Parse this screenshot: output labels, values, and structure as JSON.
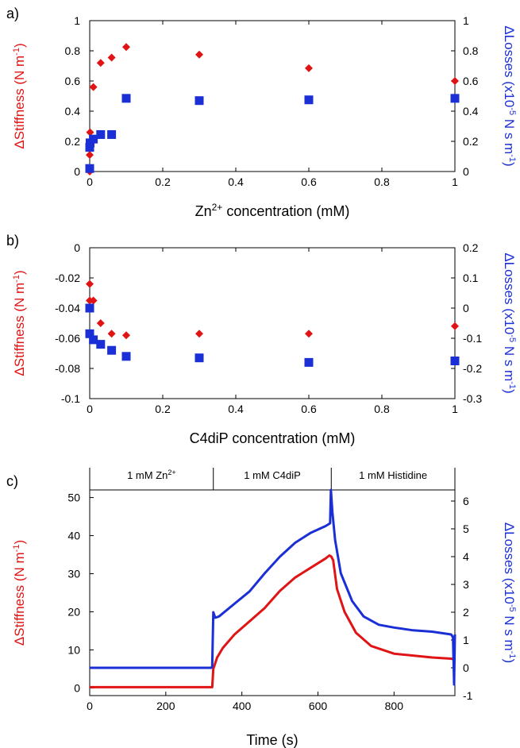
{
  "colors": {
    "red": "#e01414",
    "blue": "#1a2fd6",
    "axis": "#000000"
  },
  "chart_data": [
    {
      "panel_label": "a)",
      "type": "scatter",
      "xlabel_main": "Zn",
      "xlabel_sup": "2+",
      "xlabel_rest": " concentration (mM)",
      "ylabel_left_main": "ΔStiffness (N m",
      "ylabel_left_sup": "-1",
      "ylabel_left_end": ")",
      "ylabel_right_main": "ΔLosses (x10",
      "ylabel_right_sup": "-5",
      "ylabel_right_mid": " N s m",
      "ylabel_right_sup2": "-1",
      "ylabel_right_end": ")",
      "xlim": [
        0,
        1
      ],
      "ylim_left": [
        0,
        1
      ],
      "ylim_right": [
        0,
        1
      ],
      "x_ticks": [
        "0",
        "0.2",
        "0.4",
        "0.6",
        "0.8",
        "1"
      ],
      "y_left_ticks": [
        "0",
        "0.2",
        "0.4",
        "0.6",
        "0.8",
        "1"
      ],
      "y_right_ticks": [
        "0",
        "0.2",
        "0.4",
        "0.6",
        "0.8",
        "1"
      ],
      "series": [
        {
          "axis": "left",
          "marker": "diamond",
          "color": "red",
          "points": [
            [
              0,
              0.0
            ],
            [
              0.0,
              0.11
            ],
            [
              0.001,
              0.26
            ],
            [
              0.01,
              0.56
            ],
            [
              0.03,
              0.72
            ],
            [
              0.06,
              0.755
            ],
            [
              0.1,
              0.825
            ],
            [
              0.3,
              0.775
            ],
            [
              0.6,
              0.685
            ],
            [
              1.0,
              0.6
            ]
          ]
        },
        {
          "axis": "right",
          "marker": "square",
          "color": "blue",
          "points": [
            [
              0,
              0.02
            ],
            [
              0.0,
              0.16
            ],
            [
              0.001,
              0.19
            ],
            [
              0.01,
              0.215
            ],
            [
              0.03,
              0.245
            ],
            [
              0.06,
              0.245
            ],
            [
              0.1,
              0.485
            ],
            [
              0.3,
              0.47
            ],
            [
              0.6,
              0.475
            ],
            [
              1.0,
              0.485
            ]
          ]
        }
      ]
    },
    {
      "panel_label": "b)",
      "type": "scatter",
      "xlabel_main": "C4diP concentration (mM)",
      "ylabel_left_main": "ΔStiffness (N m",
      "ylabel_left_sup": "-1",
      "ylabel_left_end": ")",
      "ylabel_right_main": "ΔLosses (x10",
      "ylabel_right_sup": "-5",
      "ylabel_right_mid": " N s m",
      "ylabel_right_sup2": "-1",
      "ylabel_right_end": ")",
      "xlim": [
        0,
        1
      ],
      "ylim_left": [
        -0.1,
        0
      ],
      "ylim_right": [
        -0.3,
        0.2
      ],
      "x_ticks": [
        "0",
        "0.2",
        "0.4",
        "0.6",
        "0.8",
        "1"
      ],
      "y_left_ticks": [
        "-0.1",
        "-0.08",
        "-0.06",
        "-0.04",
        "-0.02",
        "0"
      ],
      "y_right_ticks": [
        "-0.3",
        "-0.2",
        "-0.1",
        "0",
        "0.1",
        "0.2"
      ],
      "series": [
        {
          "axis": "left",
          "marker": "diamond",
          "color": "red",
          "points": [
            [
              0,
              -0.024
            ],
            [
              0.0,
              -0.035
            ],
            [
              0.01,
              -0.035
            ],
            [
              0.03,
              -0.05
            ],
            [
              0.06,
              -0.057
            ],
            [
              0.1,
              -0.058
            ],
            [
              0.3,
              -0.057
            ],
            [
              0.6,
              -0.057
            ],
            [
              1.0,
              -0.052
            ]
          ]
        },
        {
          "axis": "right",
          "marker": "square",
          "color": "blue",
          "points": [
            [
              0,
              0.0
            ],
            [
              0.0,
              -0.085
            ],
            [
              0.01,
              -0.105
            ],
            [
              0.03,
              -0.12
            ],
            [
              0.06,
              -0.14
            ],
            [
              0.1,
              -0.16
            ],
            [
              0.3,
              -0.165
            ],
            [
              0.6,
              -0.18
            ],
            [
              1.0,
              -0.175
            ]
          ]
        }
      ]
    },
    {
      "panel_label": "c)",
      "type": "line",
      "xlabel_main": "Time (s)",
      "ylabel_left_main": "ΔStiffness (N m",
      "ylabel_left_sup": "-1",
      "ylabel_left_end": ")",
      "ylabel_right_main": "ΔLosses (x10",
      "ylabel_right_sup": "-5",
      "ylabel_right_mid": " N s m",
      "ylabel_right_sup2": "-1",
      "ylabel_right_end": ")",
      "xlim": [
        0,
        960
      ],
      "ylim_left": [
        -2,
        52
      ],
      "ylim_right": [
        -1,
        6.4
      ],
      "x_ticks": [
        "0",
        "200",
        "400",
        "600",
        "800"
      ],
      "y_left_ticks": [
        "0",
        "10",
        "20",
        "30",
        "40",
        "50"
      ],
      "y_right_ticks": [
        "-1",
        "0",
        "1",
        "2",
        "3",
        "4",
        "5",
        "6"
      ],
      "segments": [
        {
          "label": "1 mM Zn",
          "sup": "2+",
          "start": 0,
          "end": 325
        },
        {
          "label": "1 mM C4diP",
          "sup": "",
          "start": 325,
          "end": 635
        },
        {
          "label": "1 mM Histidine",
          "sup": "",
          "start": 635,
          "end": 960
        }
      ],
      "series": [
        {
          "axis": "left",
          "color": "red",
          "points": [
            [
              0,
              0.2
            ],
            [
              320,
              0.2
            ],
            [
              322,
              0.2
            ],
            [
              325,
              5
            ],
            [
              335,
              8
            ],
            [
              350,
              10.5
            ],
            [
              380,
              14
            ],
            [
              420,
              17.5
            ],
            [
              460,
              21
            ],
            [
              500,
              25.5
            ],
            [
              540,
              29
            ],
            [
              580,
              31.5
            ],
            [
              620,
              34
            ],
            [
              630,
              34.8
            ],
            [
              635,
              34.5
            ],
            [
              640,
              33.5
            ],
            [
              650,
              26
            ],
            [
              670,
              20
            ],
            [
              700,
              14.5
            ],
            [
              740,
              11
            ],
            [
              800,
              9
            ],
            [
              900,
              8
            ],
            [
              950,
              7.7
            ],
            [
              955,
              7.6
            ]
          ]
        },
        {
          "axis": "right",
          "color": "blue",
          "points": [
            [
              0,
              0.0
            ],
            [
              320,
              0.0
            ],
            [
              322,
              0.05
            ],
            [
              325,
              2.0
            ],
            [
              330,
              1.8
            ],
            [
              340,
              1.85
            ],
            [
              380,
              2.3
            ],
            [
              420,
              2.75
            ],
            [
              460,
              3.4
            ],
            [
              500,
              4.0
            ],
            [
              540,
              4.5
            ],
            [
              580,
              4.85
            ],
            [
              620,
              5.1
            ],
            [
              632,
              5.2
            ],
            [
              634,
              6.4
            ],
            [
              638,
              5.6
            ],
            [
              645,
              4.6
            ],
            [
              660,
              3.4
            ],
            [
              690,
              2.4
            ],
            [
              720,
              1.85
            ],
            [
              760,
              1.55
            ],
            [
              800,
              1.45
            ],
            [
              850,
              1.35
            ],
            [
              900,
              1.3
            ],
            [
              950,
              1.2
            ],
            [
              955,
              1.1
            ],
            [
              958,
              -0.6
            ],
            [
              960,
              1.2
            ]
          ]
        }
      ]
    }
  ]
}
